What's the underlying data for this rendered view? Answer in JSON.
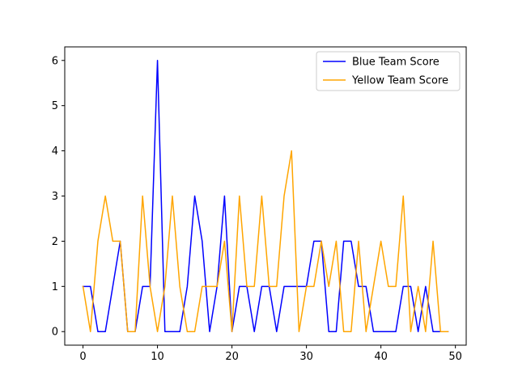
{
  "chart_data": {
    "type": "line",
    "title": "",
    "xlabel": "",
    "ylabel": "",
    "xlim": [
      -2.45,
      51.45
    ],
    "ylim": [
      -0.3,
      6.3
    ],
    "xticks": [
      0,
      10,
      20,
      30,
      40,
      50
    ],
    "yticks": [
      0,
      1,
      2,
      3,
      4,
      5,
      6
    ],
    "grid": false,
    "legend_position": "top-right",
    "x": [
      0,
      1,
      2,
      3,
      4,
      5,
      6,
      7,
      8,
      9,
      10,
      11,
      12,
      13,
      14,
      15,
      16,
      17,
      18,
      19,
      20,
      21,
      22,
      23,
      24,
      25,
      26,
      27,
      28,
      29,
      30,
      31,
      32,
      33,
      34,
      35,
      36,
      37,
      38,
      39,
      40,
      41,
      42,
      43,
      44,
      45,
      46,
      47,
      48,
      49
    ],
    "series": [
      {
        "name": "Blue Team Score",
        "color": "#0000ff",
        "values": [
          1,
          1,
          0,
          0,
          1,
          2,
          0,
          0,
          1,
          1,
          6,
          0,
          0,
          0,
          1,
          3,
          2,
          0,
          1,
          3,
          0,
          1,
          1,
          0,
          1,
          1,
          0,
          1,
          1,
          1,
          1,
          2,
          2,
          0,
          0,
          2,
          2,
          1,
          1,
          0,
          0,
          0,
          0,
          1,
          1,
          0,
          1,
          0,
          0,
          0
        ]
      },
      {
        "name": "Yellow Team Score",
        "color": "#ffa500",
        "values": [
          1,
          0,
          2,
          3,
          2,
          2,
          0,
          0,
          3,
          1,
          0,
          1,
          3,
          1,
          0,
          0,
          1,
          1,
          1,
          2,
          0,
          3,
          1,
          1,
          3,
          1,
          1,
          3,
          4,
          0,
          1,
          1,
          2,
          1,
          2,
          0,
          0,
          2,
          0,
          1,
          2,
          1,
          1,
          3,
          0,
          1,
          0,
          2,
          0,
          0
        ]
      }
    ]
  }
}
